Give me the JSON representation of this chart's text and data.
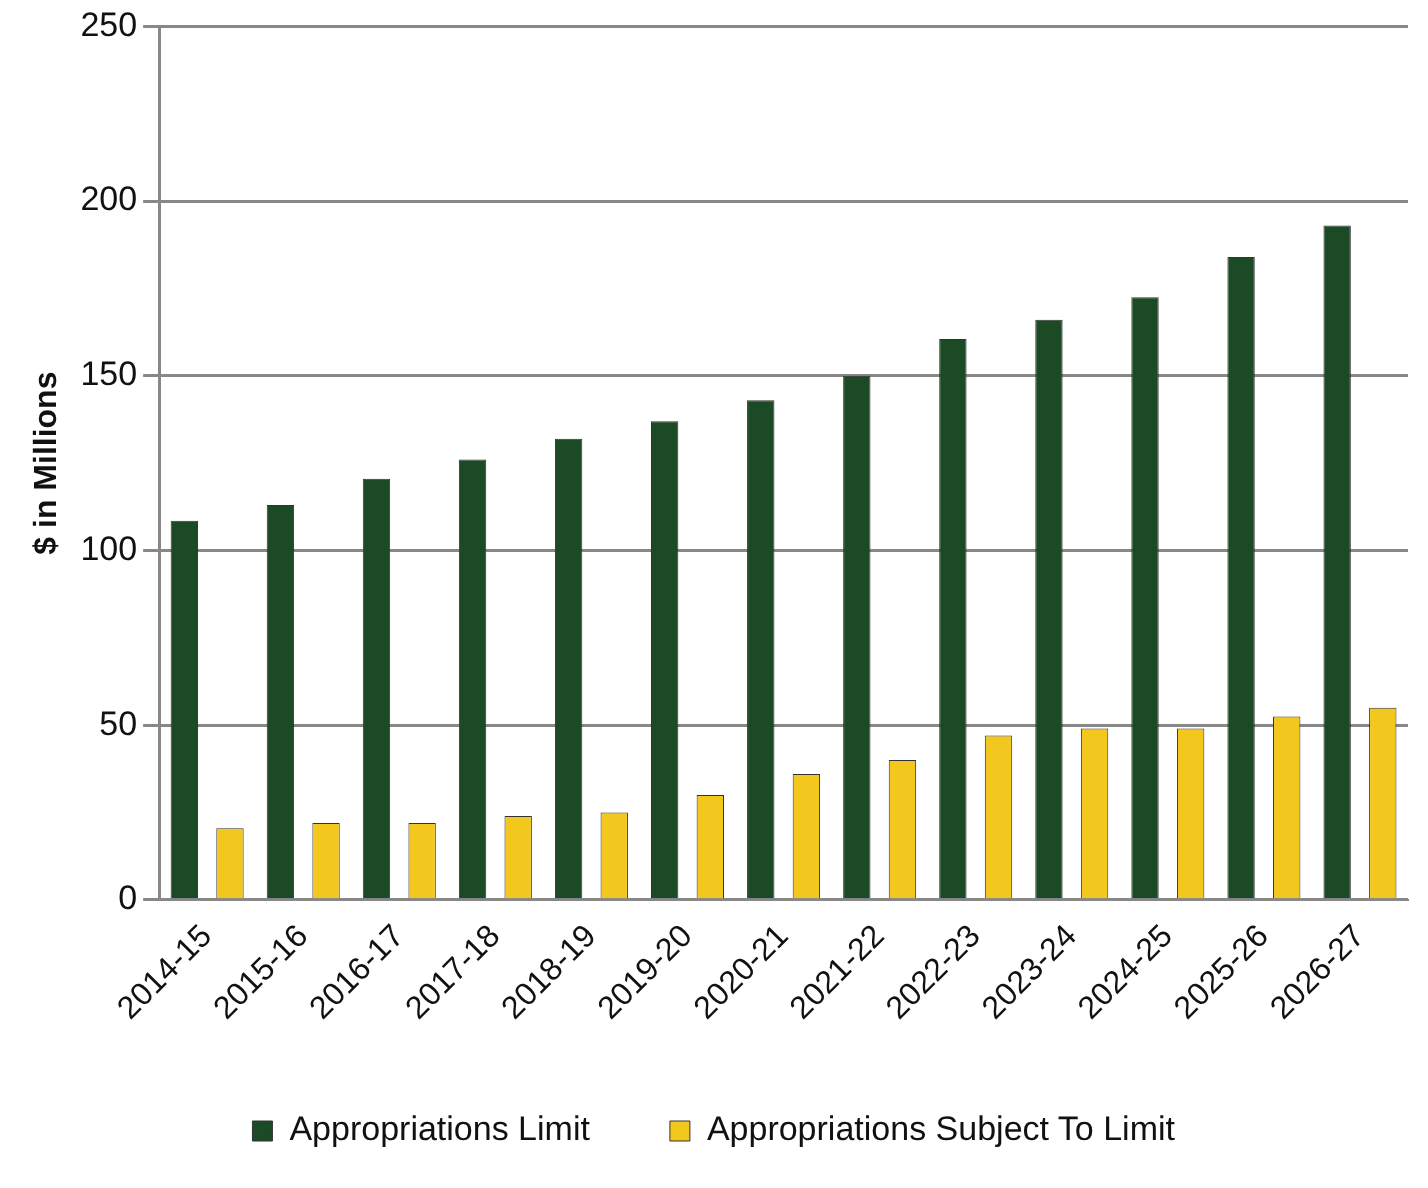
{
  "chart_data": {
    "type": "bar",
    "ylabel": "$ in Millions",
    "categories": [
      "2014-15",
      "2015-16",
      "2016-17",
      "2017-18",
      "2018-19",
      "2019-20",
      "2020-21",
      "2021-22",
      "2022-23",
      "2023-24",
      "2024-25",
      "2025-26",
      "2026-27"
    ],
    "series": [
      {
        "name": "Appropriations Limit",
        "color": "#1b4a25",
        "values": [
          108.5,
          113,
          120.5,
          126,
          132,
          137,
          143,
          150,
          160.5,
          166,
          172.5,
          184,
          193
        ]
      },
      {
        "name": "Appropriations Subject To Limit",
        "color": "#f2c81e",
        "values": [
          20.5,
          22,
          22,
          24,
          25,
          30,
          36,
          40,
          47,
          49,
          49,
          52.5,
          55
        ]
      }
    ],
    "ylim": [
      0,
      250
    ],
    "yticks": [
      0,
      50,
      100,
      150,
      200,
      250
    ],
    "grid": "y",
    "legend": "bottom"
  }
}
